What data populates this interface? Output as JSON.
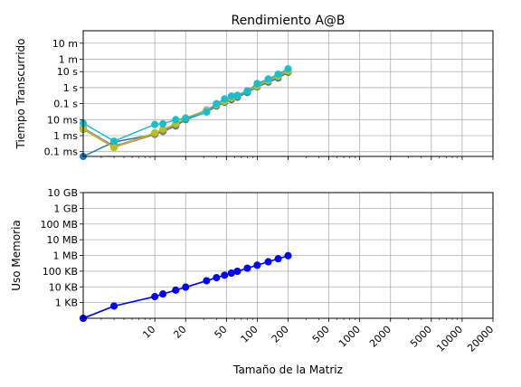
{
  "chart_data": [
    {
      "type": "line",
      "title": "Rendimiento A@B",
      "ylabel": "Tiempo Transcurrido",
      "xlabel": "",
      "xscale": "log",
      "yscale": "log",
      "xlim": [
        2,
        20000
      ],
      "ylim": [
        5e-05,
        3600
      ],
      "grid": true,
      "y_ticks": [
        {
          "value": 0.0001,
          "label": "0.1 ms"
        },
        {
          "value": 0.001,
          "label": "1 ms"
        },
        {
          "value": 0.01,
          "label": "10 ms"
        },
        {
          "value": 0.1,
          "label": "0.1 s"
        },
        {
          "value": 1,
          "label": "1 s"
        },
        {
          "value": 10,
          "label": "10 s"
        },
        {
          "value": 60,
          "label": "1 m"
        },
        {
          "value": 600,
          "label": "10 m"
        }
      ],
      "x": [
        2,
        4,
        10,
        12,
        16,
        20,
        32,
        40,
        48,
        56,
        64,
        80,
        100,
        128,
        160,
        200
      ],
      "series": [
        {
          "color": "#1f77b4",
          "values": [
            5e-05,
            0.0004,
            0.0012,
            0.0018,
            0.004,
            0.01,
            0.03,
            0.07,
            0.12,
            0.18,
            0.25,
            0.5,
            1.1,
            2.2,
            4,
            9
          ]
        },
        {
          "color": "#ff7f0e",
          "values": [
            0.003,
            0.0002,
            0.0015,
            0.0022,
            0.005,
            0.012,
            0.035,
            0.08,
            0.14,
            0.22,
            0.3,
            0.6,
            1.3,
            2.8,
            5,
            11
          ]
        },
        {
          "color": "#2ca02c",
          "values": [
            0.0025,
            0.00018,
            0.0014,
            0.002,
            0.0045,
            0.011,
            0.032,
            0.075,
            0.13,
            0.2,
            0.28,
            0.55,
            1.2,
            2.6,
            4.8,
            10
          ]
        },
        {
          "color": "#d62728",
          "values": [
            0.0028,
            0.0002,
            0.0013,
            0.0021,
            0.0048,
            0.0115,
            0.033,
            0.078,
            0.135,
            0.21,
            0.29,
            0.58,
            1.25,
            2.7,
            4.9,
            10.5
          ]
        },
        {
          "color": "#9467bd",
          "values": [
            0.003,
            0.00022,
            0.0012,
            0.0019,
            0.005,
            0.012,
            0.04,
            0.09,
            0.16,
            0.25,
            0.33,
            0.65,
            1.4,
            3,
            6,
            12
          ]
        },
        {
          "color": "#8c564b",
          "values": [
            0.0029,
            0.00021,
            0.0013,
            0.002,
            0.0047,
            0.0112,
            0.034,
            0.08,
            0.14,
            0.22,
            0.3,
            0.6,
            1.3,
            2.8,
            5.2,
            11
          ]
        },
        {
          "color": "#e377c2",
          "values": [
            0.003,
            0.0002,
            0.0014,
            0.0022,
            0.0052,
            0.0125,
            0.038,
            0.085,
            0.15,
            0.24,
            0.32,
            0.62,
            1.35,
            2.9,
            5.5,
            11.5
          ]
        },
        {
          "color": "#7f7f7f",
          "values": [
            0.0028,
            0.00019,
            0.0012,
            0.0018,
            0.0045,
            0.011,
            0.035,
            0.09,
            0.15,
            0.23,
            0.31,
            0.6,
            1.3,
            2.8,
            5.1,
            10.8
          ]
        },
        {
          "color": "#bcbd22",
          "values": [
            0.0027,
            0.00018,
            0.0015,
            0.0025,
            0.0055,
            0.013,
            0.037,
            0.082,
            0.14,
            0.22,
            0.3,
            0.6,
            1.25,
            2.7,
            5,
            10.5
          ]
        },
        {
          "color": "#17becf",
          "values": [
            0.006,
            0.00045,
            0.005,
            0.0055,
            0.01,
            0.012,
            0.03,
            0.1,
            0.2,
            0.3,
            0.32,
            0.6,
            1.8,
            3.5,
            7,
            15
          ]
        }
      ]
    },
    {
      "type": "line",
      "title": "",
      "ylabel": "Uso Memoria",
      "xlabel": "Tamaño de la Matriz",
      "xscale": "log",
      "yscale": "log",
      "xlim": [
        2,
        20000
      ],
      "ylim": [
        100,
        10000000000
      ],
      "grid": true,
      "y_ticks": [
        {
          "value": 1000,
          "label": "1 KB"
        },
        {
          "value": 10000,
          "label": "10 KB"
        },
        {
          "value": 100000,
          "label": "100 KB"
        },
        {
          "value": 1000000,
          "label": "1 MB"
        },
        {
          "value": 10000000,
          "label": "10 MB"
        },
        {
          "value": 100000000,
          "label": "100 MB"
        },
        {
          "value": 1000000000,
          "label": "1 GB"
        },
        {
          "value": 10000000000,
          "label": "10 GB"
        }
      ],
      "x_ticks": [
        {
          "value": 10,
          "label": "10"
        },
        {
          "value": 20,
          "label": "20"
        },
        {
          "value": 50,
          "label": "50"
        },
        {
          "value": 100,
          "label": "100"
        },
        {
          "value": 200,
          "label": "200"
        },
        {
          "value": 500,
          "label": "500"
        },
        {
          "value": 1000,
          "label": "1000"
        },
        {
          "value": 2000,
          "label": "2000"
        },
        {
          "value": 5000,
          "label": "5000"
        },
        {
          "value": 10000,
          "label": "10000"
        },
        {
          "value": 20000,
          "label": "20000"
        }
      ],
      "x": [
        2,
        4,
        10,
        12,
        16,
        20,
        32,
        40,
        48,
        56,
        64,
        80,
        100,
        128,
        160,
        200
      ],
      "series": [
        {
          "color": "#1f77b4",
          "values": [
            100,
            600,
            2400,
            3500,
            6200,
            9600,
            24600,
            38400,
            55300,
            75300,
            98300,
            153600,
            240000,
            393000,
            614000,
            960000
          ]
        },
        {
          "color": "#0000ff",
          "values": [
            100,
            600,
            2400,
            3500,
            6200,
            9600,
            24600,
            38400,
            55300,
            75300,
            98300,
            153600,
            240000,
            393000,
            614000,
            960000
          ]
        }
      ]
    }
  ]
}
